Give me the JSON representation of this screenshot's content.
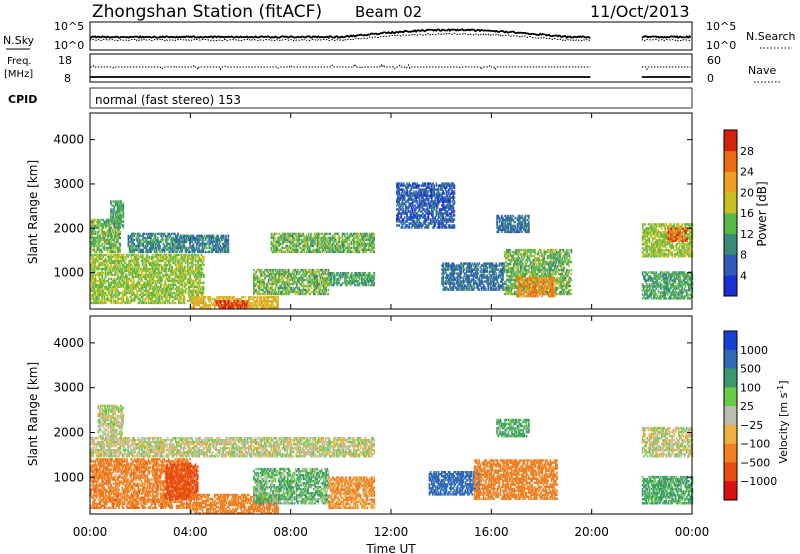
{
  "header": {
    "title": "Zhongshan Station (fitACF)",
    "beam": "Beam 02",
    "date": "11/Oct/2013"
  },
  "noise_panel": {
    "left_label": "N.Sky",
    "right_label": "N.Search",
    "left_ticks": [
      "10^5",
      "10^0"
    ],
    "right_ticks": [
      "10^5",
      "10^0"
    ]
  },
  "freq_panel": {
    "left_label_1": "Freq.",
    "left_label_2": "[MHz]",
    "right_label": "Nave",
    "left_ticks": [
      "18",
      "8"
    ],
    "right_ticks": [
      "60",
      "0"
    ]
  },
  "cpid": {
    "label": "CPID",
    "text": "normal (fast stereo) 153"
  },
  "colors": {
    "power_scale": [
      "#1a2fd6",
      "#2e5cb8",
      "#3a8a7a",
      "#58b84a",
      "#c8c020",
      "#f0a020",
      "#ee6a10",
      "#d82010"
    ],
    "velocity_scale": [
      "#1a3fd6",
      "#2f6ab8",
      "#3a9a6a",
      "#66cc44",
      "#bdbdb0",
      "#f0b040",
      "#f08020",
      "#e84c10",
      "#d81010"
    ]
  },
  "chart_data": [
    {
      "type": "heatmap",
      "title": "",
      "xlabel": "",
      "ylabel": "Slant Range [km]",
      "x_range_hours": [
        0,
        24
      ],
      "ylim": [
        180,
        4600
      ],
      "x_ticks": [
        "00:00",
        "04:00",
        "08:00",
        "12:00",
        "16:00",
        "20:00",
        "00:00"
      ],
      "y_ticks": [
        1000,
        2000,
        3000,
        4000
      ],
      "colorbar": {
        "label": "Power [dB]",
        "ticks": [
          4,
          8,
          12,
          16,
          20,
          24,
          28
        ],
        "range": [
          0,
          32
        ]
      },
      "data_gap_hours": [
        20.0,
        22.0
      ],
      "scatter_regions": [
        {
          "t0": 0.0,
          "t1": 1.2,
          "r0": 1450,
          "r1": 2200,
          "power": 14
        },
        {
          "t0": 0.8,
          "t1": 1.3,
          "r0": 2000,
          "r1": 2600,
          "power": 12
        },
        {
          "t0": 1.5,
          "t1": 3.5,
          "r0": 1450,
          "r1": 1900,
          "power": 10
        },
        {
          "t0": 3.5,
          "t1": 5.5,
          "r0": 1450,
          "r1": 1850,
          "power": 9
        },
        {
          "t0": 0.0,
          "t1": 4.5,
          "r0": 300,
          "r1": 1400,
          "power": 16
        },
        {
          "t0": 4.0,
          "t1": 7.5,
          "r0": 200,
          "r1": 450,
          "power": 20
        },
        {
          "t0": 5.0,
          "t1": 6.3,
          "r0": 200,
          "r1": 350,
          "power": 28
        },
        {
          "t0": 6.5,
          "t1": 9.5,
          "r0": 500,
          "r1": 1050,
          "power": 14
        },
        {
          "t0": 7.2,
          "t1": 11.3,
          "r0": 1450,
          "r1": 1900,
          "power": 14
        },
        {
          "t0": 9.5,
          "t1": 11.3,
          "r0": 700,
          "r1": 1000,
          "power": 12
        },
        {
          "t0": 12.2,
          "t1": 14.5,
          "r0": 2000,
          "r1": 3000,
          "power": 6
        },
        {
          "t0": 14.0,
          "t1": 16.5,
          "r0": 600,
          "r1": 1200,
          "power": 8
        },
        {
          "t0": 16.5,
          "t1": 19.2,
          "r0": 500,
          "r1": 1500,
          "power": 14
        },
        {
          "t0": 16.2,
          "t1": 17.5,
          "r0": 1900,
          "r1": 2300,
          "power": 8
        },
        {
          "t0": 17.0,
          "t1": 18.5,
          "r0": 450,
          "r1": 900,
          "power": 24
        },
        {
          "t0": 22.0,
          "t1": 24.0,
          "r0": 1350,
          "r1": 2100,
          "power": 16
        },
        {
          "t0": 22.0,
          "t1": 24.0,
          "r0": 400,
          "r1": 1000,
          "power": 12
        },
        {
          "t0": 23.0,
          "t1": 23.8,
          "r0": 1700,
          "r1": 2000,
          "power": 26
        }
      ]
    },
    {
      "type": "heatmap",
      "title": "",
      "xlabel": "Time UT",
      "ylabel": "Slant Range [km]",
      "x_range_hours": [
        0,
        24
      ],
      "ylim": [
        180,
        4600
      ],
      "x_ticks": [
        "00:00",
        "04:00",
        "08:00",
        "12:00",
        "16:00",
        "20:00",
        "00:00"
      ],
      "y_ticks": [
        1000,
        2000,
        3000,
        4000
      ],
      "colorbar": {
        "label": "Velocity [m s^-1]",
        "ticks": [
          "1000",
          "500",
          "100",
          "25",
          "−25",
          "−100",
          "−500",
          "−1000"
        ]
      },
      "data_gap_hours": [
        20.0,
        22.0
      ],
      "scatter_regions": [
        {
          "t0": 0.0,
          "t1": 11.3,
          "r0": 1450,
          "r1": 1900,
          "velocity": 0
        },
        {
          "t0": 0.3,
          "t1": 1.3,
          "r0": 1900,
          "r1": 2600,
          "velocity": 0
        },
        {
          "t0": 0.0,
          "t1": 4.0,
          "r0": 300,
          "r1": 1400,
          "velocity": -200
        },
        {
          "t0": 3.0,
          "t1": 4.3,
          "r0": 500,
          "r1": 1300,
          "velocity": -600
        },
        {
          "t0": 4.0,
          "t1": 7.5,
          "r0": 180,
          "r1": 600,
          "velocity": -150
        },
        {
          "t0": 6.5,
          "t1": 9.5,
          "r0": 400,
          "r1": 1200,
          "velocity": 60
        },
        {
          "t0": 9.5,
          "t1": 11.3,
          "r0": 300,
          "r1": 1000,
          "velocity": -80
        },
        {
          "t0": 13.5,
          "t1": 15.5,
          "r0": 600,
          "r1": 1100,
          "velocity": 400
        },
        {
          "t0": 15.3,
          "t1": 18.6,
          "r0": 500,
          "r1": 1400,
          "velocity": -150
        },
        {
          "t0": 16.2,
          "t1": 17.5,
          "r0": 1900,
          "r1": 2300,
          "velocity": 80
        },
        {
          "t0": 22.0,
          "t1": 24.0,
          "r0": 1450,
          "r1": 2100,
          "velocity": 0
        },
        {
          "t0": 22.0,
          "t1": 24.0,
          "r0": 400,
          "r1": 1000,
          "velocity": 80
        }
      ]
    }
  ]
}
